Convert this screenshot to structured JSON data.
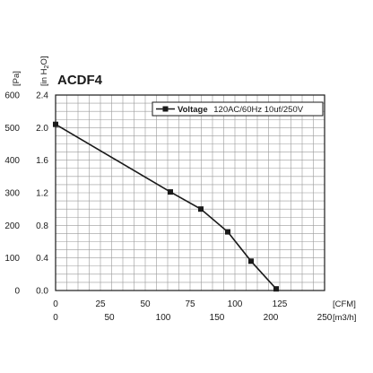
{
  "chart_data": {
    "type": "line",
    "title": "ACDF4",
    "series": [
      {
        "name": "Voltage 120AC/60Hz 10uf/250V",
        "x": [
          0,
          64,
          81,
          96,
          109,
          123
        ],
        "y": [
          2.04,
          1.21,
          1.0,
          0.72,
          0.36,
          0.02
        ]
      }
    ],
    "legend": {
      "label_bold": "Voltage",
      "label_rest": "120AC/60Hz 10uf/250V",
      "placement": "top-right"
    },
    "x_axis_primary": {
      "unit": "[CFM]",
      "ticks": [
        "0",
        "25",
        "50",
        "75",
        "100",
        "125"
      ],
      "range": [
        0,
        150
      ]
    },
    "x_axis_secondary": {
      "unit": "[m3/h]",
      "ticks": [
        "0",
        "50",
        "100",
        "150",
        "200",
        "250"
      ],
      "range": [
        0,
        250
      ]
    },
    "y_axis_primary": {
      "unit": "[in H2O]",
      "ticks": [
        "0.0",
        "0.4",
        "0.8",
        "1.2",
        "1.6",
        "2.0",
        "2.4"
      ],
      "range": [
        0,
        2.4
      ]
    },
    "y_axis_secondary": {
      "unit": "[Pa]",
      "ticks": [
        "0",
        "100",
        "200",
        "300",
        "400",
        "500",
        "600"
      ],
      "range": [
        0,
        600
      ]
    },
    "grid": true,
    "colors": {
      "line": "#1a1a1a",
      "grid": "#9a9a9a",
      "frame": "#1a1a1a"
    }
  }
}
